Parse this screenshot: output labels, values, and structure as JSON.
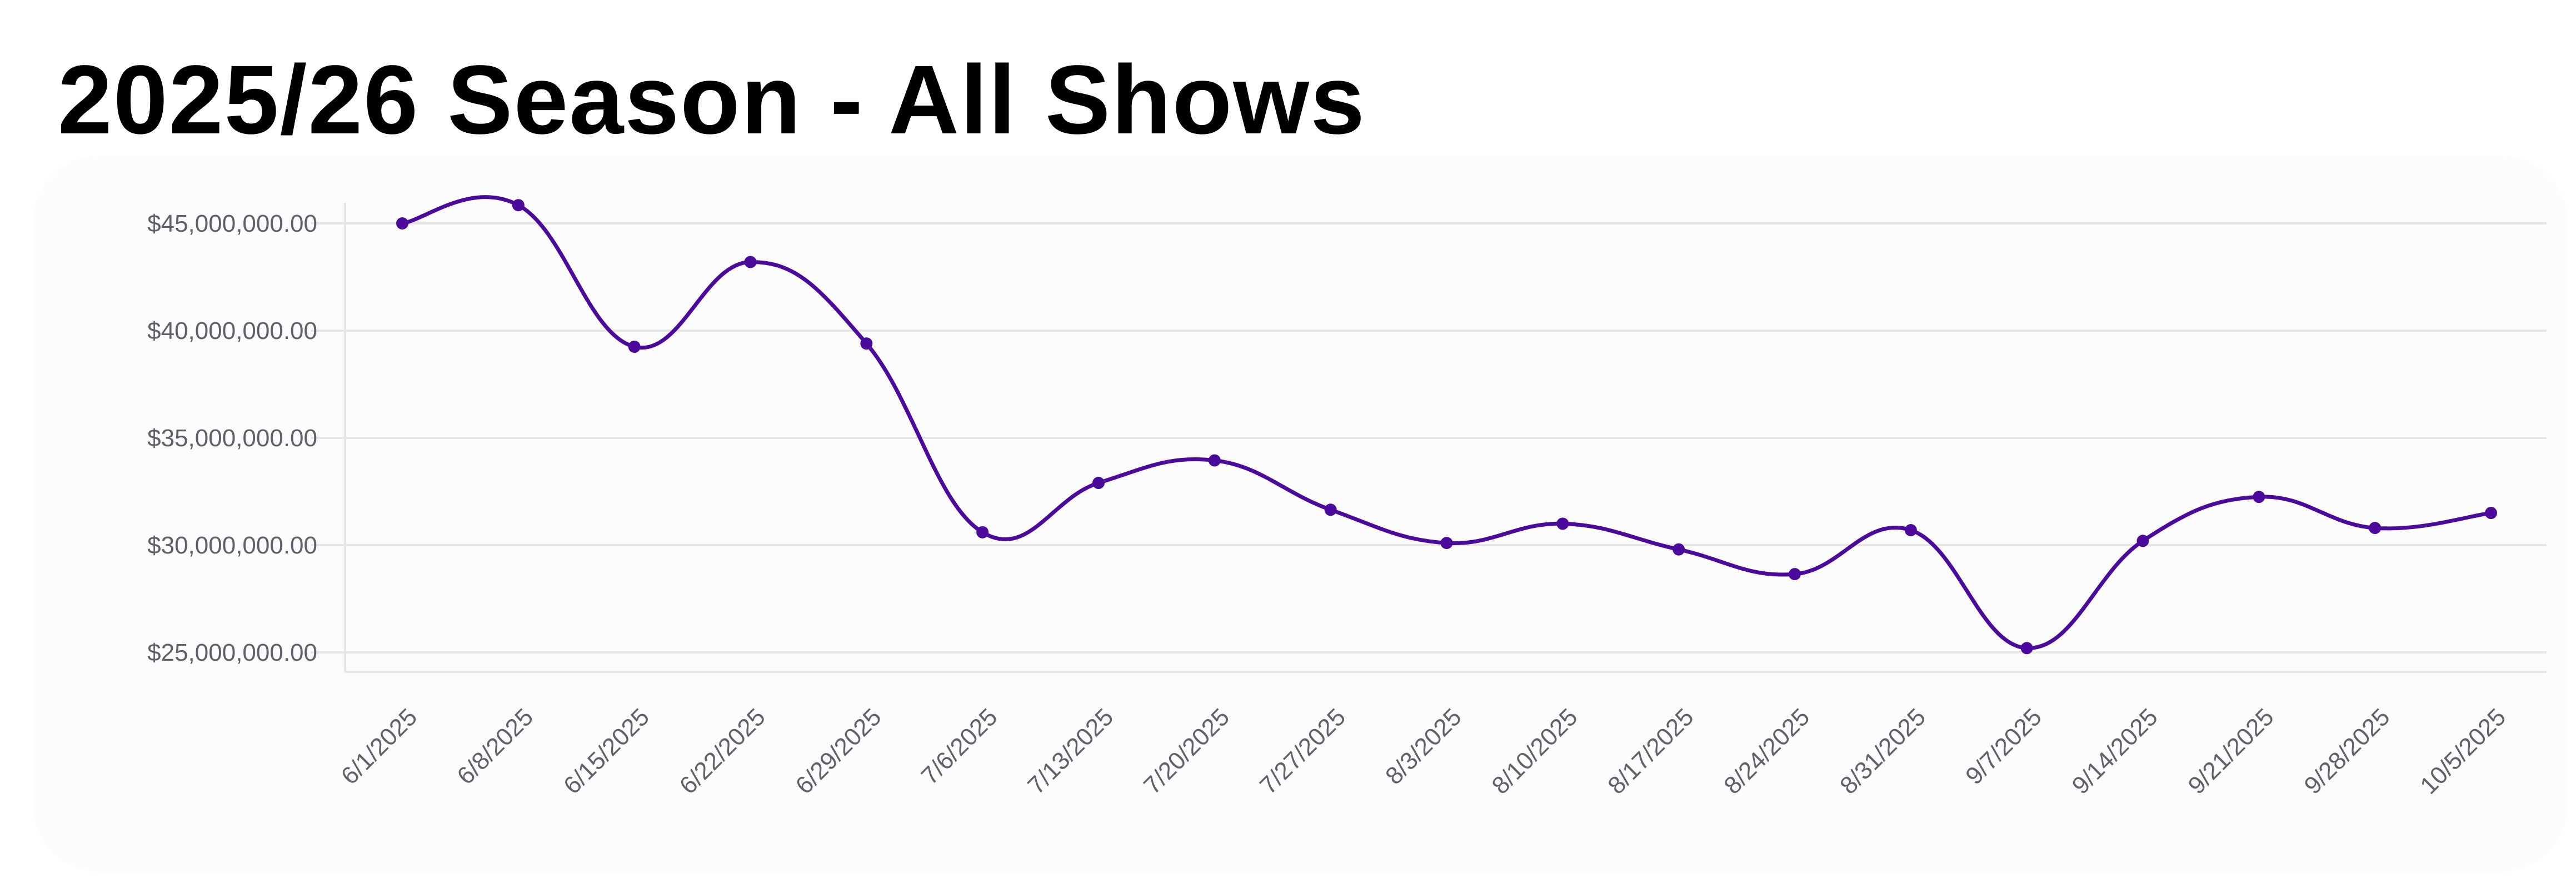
{
  "chart_data": {
    "type": "line",
    "title": "2025/26 Season - All Shows",
    "xlabel": "",
    "ylabel": "",
    "ylim": [
      24100000,
      46000000
    ],
    "yticks": [
      25000000,
      30000000,
      35000000,
      40000000,
      45000000
    ],
    "ytick_labels": [
      "$25,000,000.00",
      "$30,000,000.00",
      "$35,000,000.00",
      "$40,000,000.00",
      "$45,000,000.00"
    ],
    "grid": true,
    "legend": "none",
    "line_color": "#4b0a9c",
    "categories": [
      "6/1/2025",
      "6/8/2025",
      "6/15/2025",
      "6/22/2025",
      "6/29/2025",
      "7/6/2025",
      "7/13/2025",
      "7/20/2025",
      "7/27/2025",
      "8/3/2025",
      "8/10/2025",
      "8/17/2025",
      "8/24/2025",
      "8/31/2025",
      "9/7/2025",
      "9/14/2025",
      "9/21/2025",
      "9/28/2025",
      "10/5/2025"
    ],
    "series": [
      {
        "name": "All Shows",
        "values": [
          45000000,
          45850000,
          39250000,
          43200000,
          39400000,
          30600000,
          32900000,
          33950000,
          31650000,
          30100000,
          31000000,
          29800000,
          28650000,
          30700000,
          25200000,
          30200000,
          32250000,
          30800000,
          31500000
        ]
      }
    ]
  }
}
